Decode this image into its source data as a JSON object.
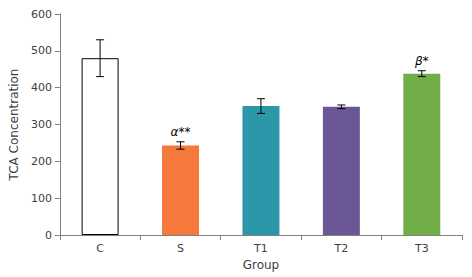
{
  "chart_data": {
    "type": "bar",
    "x_label": "Group",
    "y_label": "TCA Concentration",
    "categories": [
      "C",
      "S",
      "T1",
      "T2",
      "T3"
    ],
    "values": [
      480,
      243,
      350,
      348,
      438
    ],
    "errors": [
      50,
      10,
      20,
      5,
      8
    ],
    "colors": [
      "#ffffff",
      "#f4793b",
      "#2a98a8",
      "#6b5795",
      "#70ad47"
    ],
    "annotations": [
      {
        "category": "S",
        "text": "α**"
      },
      {
        "category": "T3",
        "text": "β*"
      }
    ],
    "ylim": [
      0,
      600
    ],
    "yticks": [
      0,
      100,
      200,
      300,
      400,
      500,
      600
    ],
    "grid": false
  }
}
